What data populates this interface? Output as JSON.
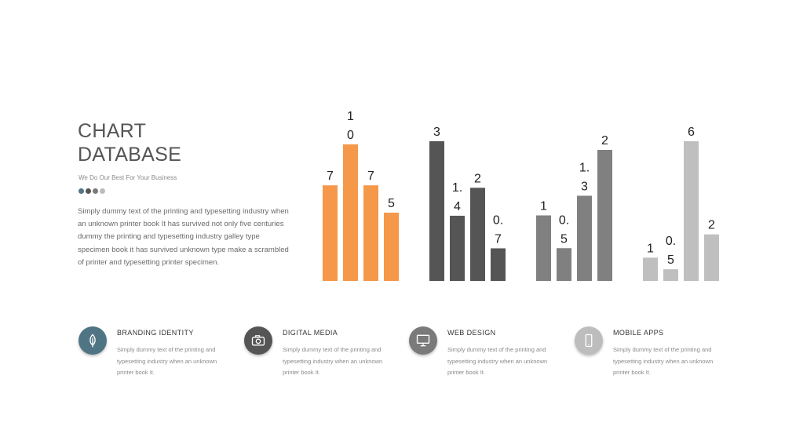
{
  "header": {
    "title_line1": "CHART",
    "title_line2": "DATABASE",
    "subtitle": "We Do Our Best For Your Business",
    "description": "Simply dummy text of the printing and typesetting industry when an unknown printer book It has survived not only five centuries dummy  the printing and typesetting industry galley type specimen book it has survived unknown type make a scrambled of printer and typesetting printer specimen.",
    "dot_colors": [
      "#4f7585",
      "#555555",
      "#7a7a7a",
      "#bdbdbd"
    ]
  },
  "chart_data": {
    "type": "bar",
    "groups": [
      {
        "color": "#f5984a",
        "values": [
          7,
          10,
          7,
          5
        ],
        "labels": [
          "7",
          "10",
          "7",
          "5"
        ]
      },
      {
        "color": "#555555",
        "values": [
          3,
          1.4,
          2,
          0.7
        ],
        "labels": [
          "3",
          "1.4",
          "2",
          "0.7"
        ]
      },
      {
        "color": "#808080",
        "values": [
          1,
          0.5,
          1.3,
          2
        ],
        "labels": [
          "1",
          "0.5",
          "1.3",
          "2"
        ]
      },
      {
        "color": "#bfbfbf",
        "values": [
          1,
          0.5,
          6,
          2
        ],
        "labels": [
          "1",
          "0.5",
          "6",
          "2"
        ]
      }
    ]
  },
  "features": [
    {
      "title": "BRANDING  IDENTITY",
      "desc": "Simply dummy text of the printing and typesetting  industry when an unknown printer book It.",
      "icon": "leaf-icon",
      "color": "#4f7585"
    },
    {
      "title": "DIGITAL MEDIA",
      "desc": "Simply dummy text of the printing and typesetting  industry when an unknown printer book It.",
      "icon": "camera-icon",
      "color": "#555555"
    },
    {
      "title": "WEB DESIGN",
      "desc": "Simply dummy text of the printing and typesetting  industry when an unknown printer book It.",
      "icon": "monitor-icon",
      "color": "#7a7a7a"
    },
    {
      "title": "MOBILE APPS",
      "desc": "Simply dummy text of the printing and typesetting  industry when an unknown printer book It.",
      "icon": "smartphone-icon",
      "color": "#bdbdbd"
    }
  ]
}
